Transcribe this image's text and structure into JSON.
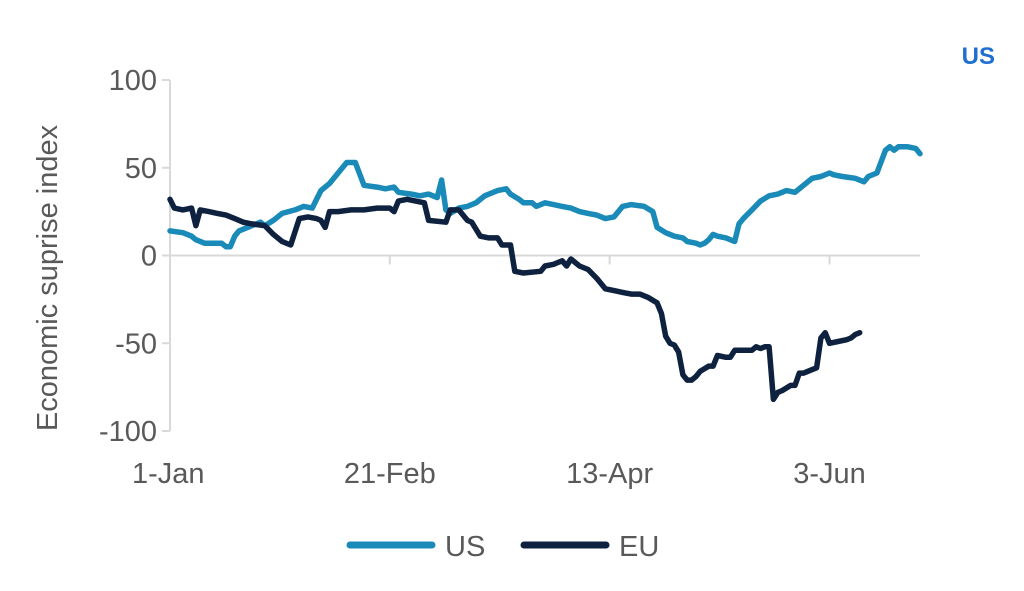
{
  "corner_tag": "US",
  "chart_data": {
    "type": "line",
    "title": "",
    "xlabel": "",
    "ylabel": "Economic suprise index",
    "ylim": [
      -100,
      100
    ],
    "yticks": [
      100,
      50,
      0,
      -50,
      -100
    ],
    "xticks": [
      {
        "label": "1-Jan",
        "day": 1
      },
      {
        "label": "21-Feb",
        "day": 52
      },
      {
        "label": "13-Apr",
        "day": 103
      },
      {
        "label": "3-Jun",
        "day": 154
      }
    ],
    "grid": false,
    "legend": "bottom",
    "x_unit": "day of year",
    "series": [
      {
        "name": "US",
        "color": "#1a8ab8",
        "points": [
          [
            1,
            14
          ],
          [
            4,
            13
          ],
          [
            6,
            11
          ],
          [
            7,
            9
          ],
          [
            9,
            7
          ],
          [
            13,
            7
          ],
          [
            14,
            5
          ],
          [
            15,
            5
          ],
          [
            16,
            11
          ],
          [
            17,
            14
          ],
          [
            21,
            18
          ],
          [
            22,
            19
          ],
          [
            23,
            17
          ],
          [
            25,
            20
          ],
          [
            26,
            22
          ],
          [
            27,
            24
          ],
          [
            30,
            26
          ],
          [
            32,
            28
          ],
          [
            34,
            27
          ],
          [
            36,
            37
          ],
          [
            38,
            41
          ],
          [
            40,
            47
          ],
          [
            42,
            53
          ],
          [
            44,
            53
          ],
          [
            46,
            40
          ],
          [
            49,
            39
          ],
          [
            51,
            38
          ],
          [
            53,
            39
          ],
          [
            54,
            36
          ],
          [
            57,
            35
          ],
          [
            59,
            34
          ],
          [
            61,
            35
          ],
          [
            63,
            33
          ],
          [
            64,
            43
          ],
          [
            65,
            26
          ],
          [
            66,
            24
          ],
          [
            68,
            27
          ],
          [
            70,
            28
          ],
          [
            72,
            30
          ],
          [
            74,
            34
          ],
          [
            76,
            36
          ],
          [
            77,
            37
          ],
          [
            79,
            38
          ],
          [
            80,
            35
          ],
          [
            82,
            32
          ],
          [
            83,
            30
          ],
          [
            85,
            30
          ],
          [
            86,
            28
          ],
          [
            88,
            30
          ],
          [
            90,
            29
          ],
          [
            92,
            28
          ],
          [
            94,
            27
          ],
          [
            96,
            25
          ],
          [
            98,
            24
          ],
          [
            100,
            23
          ],
          [
            102,
            21
          ],
          [
            104,
            22
          ],
          [
            106,
            28
          ],
          [
            108,
            29
          ],
          [
            111,
            28
          ],
          [
            113,
            25
          ],
          [
            114,
            16
          ],
          [
            116,
            13
          ],
          [
            118,
            11
          ],
          [
            120,
            10
          ],
          [
            121,
            8
          ],
          [
            123,
            7
          ],
          [
            124,
            6
          ],
          [
            125,
            7
          ],
          [
            126,
            9
          ],
          [
            127,
            12
          ],
          [
            128,
            11
          ],
          [
            130,
            10
          ],
          [
            132,
            8
          ],
          [
            133,
            18
          ],
          [
            134,
            21
          ],
          [
            136,
            26
          ],
          [
            138,
            31
          ],
          [
            140,
            34
          ],
          [
            142,
            35
          ],
          [
            144,
            37
          ],
          [
            146,
            36
          ],
          [
            148,
            40
          ],
          [
            150,
            44
          ],
          [
            152,
            45
          ],
          [
            154,
            47
          ],
          [
            155,
            46
          ],
          [
            157,
            45
          ],
          [
            160,
            44
          ],
          [
            162,
            42
          ],
          [
            163,
            45
          ],
          [
            165,
            47
          ],
          [
            167,
            60
          ],
          [
            168,
            62
          ],
          [
            169,
            60
          ],
          [
            170,
            62
          ],
          [
            172,
            62
          ],
          [
            174,
            61
          ],
          [
            175,
            58
          ]
        ]
      },
      {
        "name": "EU",
        "color": "#0e2240",
        "points": [
          [
            1,
            32
          ],
          [
            2,
            27
          ],
          [
            4,
            26
          ],
          [
            6,
            27
          ],
          [
            7,
            17
          ],
          [
            8,
            26
          ],
          [
            10,
            25
          ],
          [
            12,
            24
          ],
          [
            14,
            23
          ],
          [
            16,
            21
          ],
          [
            18,
            19
          ],
          [
            20,
            18
          ],
          [
            23,
            17
          ],
          [
            25,
            12
          ],
          [
            27,
            8
          ],
          [
            29,
            6
          ],
          [
            31,
            21
          ],
          [
            33,
            22
          ],
          [
            35,
            21
          ],
          [
            36,
            20
          ],
          [
            37,
            16
          ],
          [
            38,
            25
          ],
          [
            40,
            25
          ],
          [
            43,
            26
          ],
          [
            46,
            26
          ],
          [
            49,
            27
          ],
          [
            52,
            27
          ],
          [
            53,
            25
          ],
          [
            54,
            31
          ],
          [
            56,
            32
          ],
          [
            58,
            31
          ],
          [
            60,
            30
          ],
          [
            61,
            20
          ],
          [
            65,
            19
          ],
          [
            66,
            26
          ],
          [
            68,
            26
          ],
          [
            70,
            20
          ],
          [
            71,
            19
          ],
          [
            73,
            11
          ],
          [
            75,
            10
          ],
          [
            77,
            10
          ],
          [
            78,
            6
          ],
          [
            80,
            6
          ],
          [
            81,
            -9
          ],
          [
            83,
            -10
          ],
          [
            87,
            -9
          ],
          [
            88,
            -6
          ],
          [
            90,
            -5
          ],
          [
            91,
            -4
          ],
          [
            92,
            -3
          ],
          [
            93,
            -6
          ],
          [
            94,
            -2
          ],
          [
            96,
            -6
          ],
          [
            98,
            -8
          ],
          [
            100,
            -13
          ],
          [
            102,
            -19
          ],
          [
            104,
            -20
          ],
          [
            106,
            -21
          ],
          [
            108,
            -22
          ],
          [
            110,
            -22
          ],
          [
            112,
            -24
          ],
          [
            114,
            -27
          ],
          [
            115,
            -33
          ],
          [
            116,
            -46
          ],
          [
            117,
            -50
          ],
          [
            118,
            -51
          ],
          [
            119,
            -55
          ],
          [
            120,
            -68
          ],
          [
            121,
            -71
          ],
          [
            122,
            -71
          ],
          [
            123,
            -69
          ],
          [
            124,
            -66
          ],
          [
            126,
            -63
          ],
          [
            127,
            -63
          ],
          [
            128,
            -57
          ],
          [
            130,
            -58
          ],
          [
            131,
            -58
          ],
          [
            132,
            -54
          ],
          [
            134,
            -54
          ],
          [
            136,
            -54
          ],
          [
            137,
            -52
          ],
          [
            138,
            -53
          ],
          [
            139,
            -52
          ],
          [
            140,
            -52
          ],
          [
            141,
            -82
          ],
          [
            142,
            -78
          ],
          [
            143,
            -77
          ],
          [
            145,
            -74
          ],
          [
            146,
            -74
          ],
          [
            147,
            -67
          ],
          [
            148,
            -67
          ],
          [
            149,
            -66
          ],
          [
            151,
            -64
          ],
          [
            152,
            -47
          ],
          [
            153,
            -44
          ],
          [
            154,
            -50
          ],
          [
            156,
            -49
          ],
          [
            158,
            -48
          ],
          [
            159,
            -47
          ],
          [
            160,
            -45
          ],
          [
            161,
            -44
          ]
        ]
      }
    ]
  }
}
